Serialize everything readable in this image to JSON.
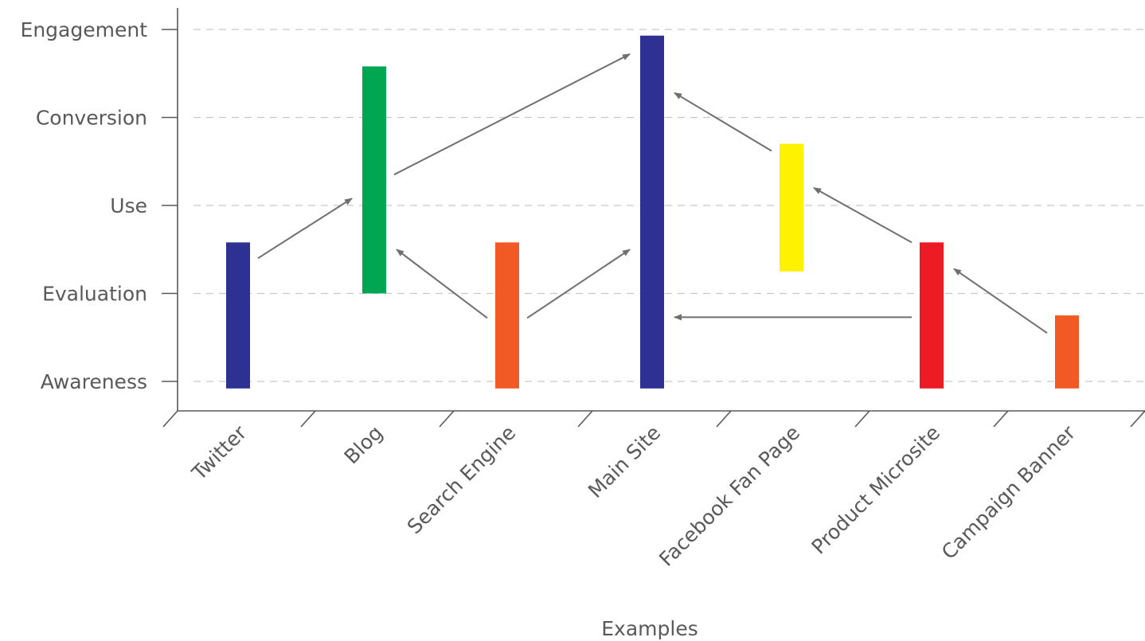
{
  "chart_data": {
    "type": "bar",
    "subtype": "floating-range",
    "title": "",
    "xlabel": "Examples",
    "ylabel": "",
    "grid": true,
    "y_categories": [
      "Awareness",
      "Evaluation",
      "Use",
      "Conversion",
      "Engagement"
    ],
    "categories": [
      "Twitter",
      "Blog",
      "Search Engine",
      "Main Site",
      "Facebook Fan Page",
      "Product Microsite",
      "Campaign Banner"
    ],
    "bars": [
      {
        "category": "Twitter",
        "low": -0.08,
        "high": 1.58,
        "color": "#2e3192"
      },
      {
        "category": "Blog",
        "low": 1.0,
        "high": 3.58,
        "color": "#00a651"
      },
      {
        "category": "Search Engine",
        "low": -0.08,
        "high": 1.58,
        "color": "#f15a24"
      },
      {
        "category": "Main Site",
        "low": -0.08,
        "high": 3.93,
        "color": "#2e3192"
      },
      {
        "category": "Facebook Fan Page",
        "low": 1.25,
        "high": 2.7,
        "color": "#fff200"
      },
      {
        "category": "Product Microsite",
        "low": -0.08,
        "high": 1.58,
        "color": "#ed1c24"
      },
      {
        "category": "Campaign Banner",
        "low": -0.08,
        "high": 0.75,
        "color": "#f15a24"
      }
    ],
    "arrows": [
      {
        "from": "Twitter",
        "to": "Blog",
        "from_y": 1.4,
        "to_y": 2.08
      },
      {
        "from": "Blog",
        "to": "Main Site",
        "from_y": 2.35,
        "to_y": 3.72
      },
      {
        "from": "Search Engine",
        "to": "Blog",
        "from_y": 0.72,
        "to_y": 1.5
      },
      {
        "from": "Search Engine",
        "to": "Main Site",
        "from_y": 0.72,
        "to_y": 1.5
      },
      {
        "from": "Facebook Fan Page",
        "to": "Main Site",
        "from_y": 2.62,
        "to_y": 3.28
      },
      {
        "from": "Product Microsite",
        "to": "Facebook Fan Page",
        "from_y": 1.58,
        "to_y": 2.2
      },
      {
        "from": "Product Microsite",
        "to": "Main Site",
        "from_y": 0.73,
        "to_y": 0.73
      },
      {
        "from": "Campaign Banner",
        "to": "Product Microsite",
        "from_y": 0.55,
        "to_y": 1.28
      }
    ]
  }
}
